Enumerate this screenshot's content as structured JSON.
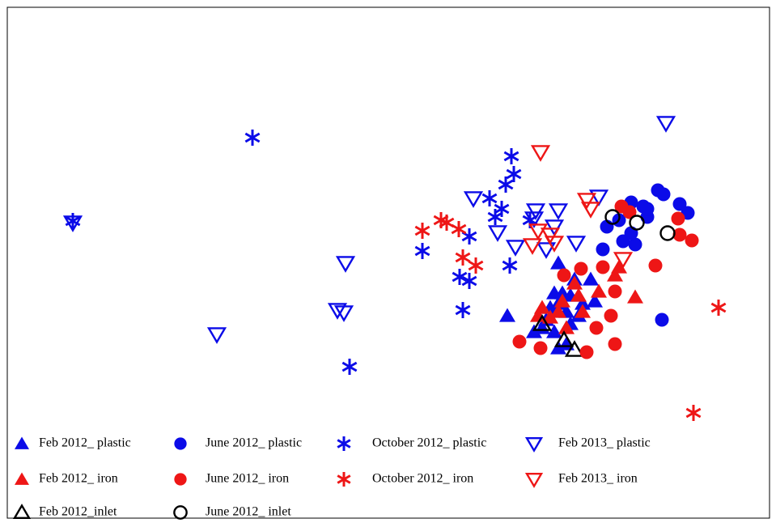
{
  "chart_data": {
    "type": "scatter",
    "xlim": [
      9,
      951
    ],
    "ylim": [
      6,
      637
    ],
    "series": [
      {
        "name": "Feb 2012_ plastic",
        "color": "#0b0be8",
        "marker": "triangle-up",
        "filled": true,
        "x": [
          690,
          685,
          695,
          710,
          730,
          705,
          690,
          680,
          700,
          720,
          735,
          627,
          660,
          670,
          685,
          705,
          690,
          700,
          675,
          715
        ],
        "values": [
          321,
          284,
          284,
          301,
          301,
          281,
          271,
          266,
          261,
          271,
          274,
          256,
          236,
          241,
          236,
          246,
          216,
          221,
          251,
          256
        ]
      },
      {
        "name": "Feb 2012_ iron",
        "color": "#ee1616",
        "marker": "triangle-up",
        "filled": true,
        "x": [
          665,
          690,
          700,
          715,
          720,
          740,
          760,
          765,
          785,
          670,
          695,
          710,
          680
        ],
        "values": [
          256,
          261,
          241,
          281,
          261,
          286,
          306,
          316,
          279,
          266,
          274,
          296,
          254
        ]
      },
      {
        "name": "Feb 2012_inlet",
        "color": "#000000",
        "marker": "triangle-up",
        "filled": false,
        "x": [
          697,
          710,
          670
        ],
        "values": [
          226,
          214,
          246
        ]
      },
      {
        "name": "June 2012_ plastic",
        "color": "#0b0be8",
        "marker": "circle",
        "filled": true,
        "x": [
          813,
          820,
          840,
          850,
          780,
          795,
          800,
          765,
          750,
          770,
          785,
          780,
          745,
          800,
          818
        ],
        "values": [
          411,
          406,
          394,
          383,
          396,
          391,
          378,
          374,
          366,
          348,
          344,
          358,
          338,
          388,
          251
        ]
      },
      {
        "name": "June 2012_ iron",
        "color": "#ee1616",
        "marker": "circle",
        "filled": true,
        "x": [
          768,
          778,
          838,
          840,
          855,
          810,
          745,
          718,
          760,
          737,
          755,
          642,
          668,
          725,
          760,
          697
        ],
        "values": [
          391,
          384,
          376,
          356,
          349,
          318,
          316,
          314,
          286,
          241,
          256,
          224,
          216,
          211,
          221,
          306
        ]
      },
      {
        "name": "June 2012_ inlet",
        "color": "#000000",
        "marker": "circle",
        "filled": false,
        "x": [
          757,
          787,
          825
        ],
        "values": [
          378,
          371,
          358
        ]
      },
      {
        "name": "October 2012_ plastic",
        "color": "#0b0be8",
        "marker": "asterisk",
        "filled": true,
        "x": [
          312,
          90,
          632,
          635,
          625,
          605,
          620,
          612,
          580,
          522,
          655,
          630,
          568,
          580,
          572,
          432
        ],
        "values": [
          476,
          373,
          453,
          431,
          418,
          401,
          388,
          378,
          354,
          336,
          374,
          318,
          304,
          299,
          263,
          193
        ]
      },
      {
        "name": "October 2012_ iron",
        "color": "#ee1616",
        "marker": "asterisk",
        "filled": true,
        "x": [
          522,
          545,
          552,
          567,
          572,
          588,
          888,
          857
        ],
        "values": [
          361,
          374,
          371,
          363,
          328,
          318,
          266,
          136
        ]
      },
      {
        "name": "Feb 2013_ plastic",
        "color": "#0b0be8",
        "marker": "triangle-down",
        "filled": false,
        "x": [
          823,
          90,
          585,
          662,
          690,
          740,
          615,
          685,
          637,
          712,
          675,
          427,
          417,
          425,
          268,
          660
        ],
        "values": [
          494,
          371,
          401,
          386,
          386,
          403,
          359,
          366,
          341,
          346,
          338,
          321,
          263,
          260,
          233,
          376
        ]
      },
      {
        "name": "Feb 2013_ iron",
        "color": "#ee1616",
        "marker": "triangle-down",
        "filled": false,
        "x": [
          668,
          725,
          665,
          680,
          658,
          685,
          770,
          730
        ],
        "values": [
          458,
          399,
          361,
          356,
          343,
          346,
          326,
          388
        ]
      }
    ]
  }
}
